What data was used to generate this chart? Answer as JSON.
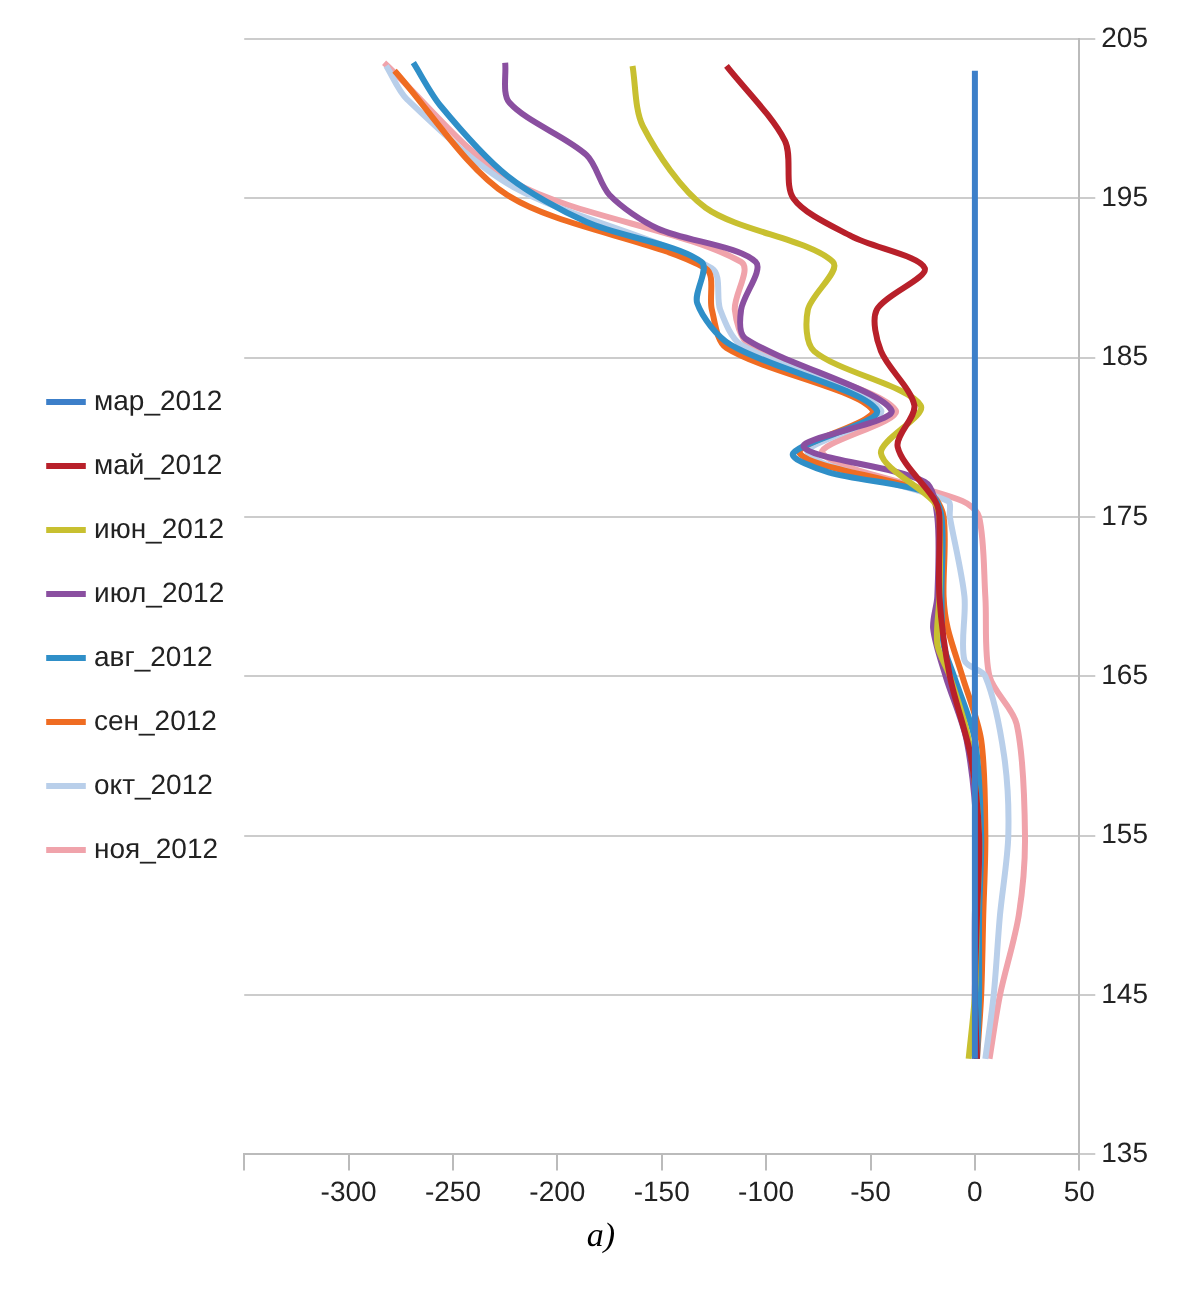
{
  "chart_data": {
    "type": "line",
    "xlim": [
      -350,
      50
    ],
    "ylim": [
      135,
      205
    ],
    "xticks": [
      {
        "value": -350,
        "label": null
      },
      -300,
      -250,
      -200,
      -150,
      -100,
      -50,
      0,
      50
    ],
    "yticks": [
      135,
      145,
      155,
      165,
      175,
      185,
      195,
      205
    ],
    "grid": "y",
    "legend": "left",
    "annotations": [
      "a)"
    ],
    "series": [
      {
        "name": "мар_2012",
        "color": "#3c7fc9",
        "x": [
          0,
          0
        ],
        "values": [
          203,
          141
        ]
      },
      {
        "name": "май_2012",
        "color": "#b8202a",
        "x": [
          -119,
          -91,
          -87,
          -59,
          -24,
          -47,
          -45,
          -29,
          -37,
          -19,
          -17,
          -17,
          -12,
          -2,
          2,
          1,
          0,
          1
        ],
        "values": [
          203.3,
          198.6,
          195,
          192.6,
          190.6,
          188,
          185.4,
          182,
          179.4,
          176,
          175,
          170,
          165,
          160,
          155,
          150,
          145,
          141
        ]
      },
      {
        "name": "июн_2012",
        "color": "#c8c030",
        "x": [
          -164,
          -159,
          -129,
          -68,
          -80,
          -77,
          -26,
          -45,
          -20,
          -17,
          -17,
          -18,
          -12,
          -3,
          2,
          1,
          0,
          -3
        ],
        "values": [
          203.3,
          199.5,
          194.4,
          191,
          188,
          185.4,
          182,
          179,
          176,
          175,
          170,
          167,
          165,
          161,
          155,
          150,
          145,
          141
        ]
      },
      {
        "name": "июл_2012",
        "color": "#8a4fa0",
        "x": [
          -225,
          -223,
          -186,
          -175,
          -152,
          -105,
          -112,
          -110,
          -40,
          -82,
          -24,
          -18,
          -18,
          -20,
          -14,
          -4,
          1,
          0,
          0,
          0
        ],
        "values": [
          203.5,
          201,
          197.7,
          195.2,
          193.1,
          191,
          188,
          186.2,
          181.7,
          179.4,
          177.2,
          175,
          170,
          168,
          165,
          161,
          155,
          150,
          145,
          141
        ]
      },
      {
        "name": "авг_2012",
        "color": "#2f8fc8",
        "x": [
          -269,
          -256,
          -224,
          -186,
          -131,
          -133,
          -117,
          -47,
          -87,
          -70,
          -22,
          -16,
          -16,
          -15,
          -10,
          0,
          3,
          2,
          2,
          1
        ],
        "values": [
          203.5,
          200.8,
          196.4,
          193.5,
          191,
          188.4,
          185.8,
          181.7,
          179,
          177.8,
          176.5,
          175,
          170,
          167,
          165,
          161,
          155,
          150,
          145,
          141
        ]
      },
      {
        "name": "сен_2012",
        "color": "#ef6c22",
        "x": [
          -278,
          -224,
          -129,
          -126,
          -119,
          -49,
          -84,
          -22,
          -15,
          -15,
          -13,
          -6,
          3,
          5,
          4,
          3,
          1
        ],
        "values": [
          203,
          195.2,
          190.6,
          188,
          185.6,
          181.7,
          179,
          176.5,
          175,
          170,
          168,
          165,
          161,
          155,
          150,
          145,
          141
        ]
      },
      {
        "name": "окт_2012",
        "color": "#b9cfea",
        "x": [
          -282,
          -272,
          -221,
          -126,
          -122,
          -112,
          -45,
          -80,
          -13,
          -12,
          -5,
          -5,
          5,
          14,
          16,
          12,
          9,
          5
        ],
        "values": [
          203.3,
          201.2,
          195.7,
          190.6,
          188,
          185.8,
          181.7,
          179,
          176,
          175,
          170,
          166,
          165,
          160,
          155,
          150,
          145,
          141
        ]
      },
      {
        "name": "ноя_2012",
        "color": "#f0a3ab",
        "x": [
          -283,
          -221,
          -112,
          -115,
          -108,
          -38,
          -73,
          -6,
          2,
          5,
          7,
          20,
          24,
          21,
          12,
          7
        ],
        "values": [
          203.5,
          196,
          191,
          188,
          185.8,
          181.7,
          179,
          176,
          175,
          170,
          165,
          162,
          155,
          150,
          145,
          141
        ]
      }
    ]
  }
}
